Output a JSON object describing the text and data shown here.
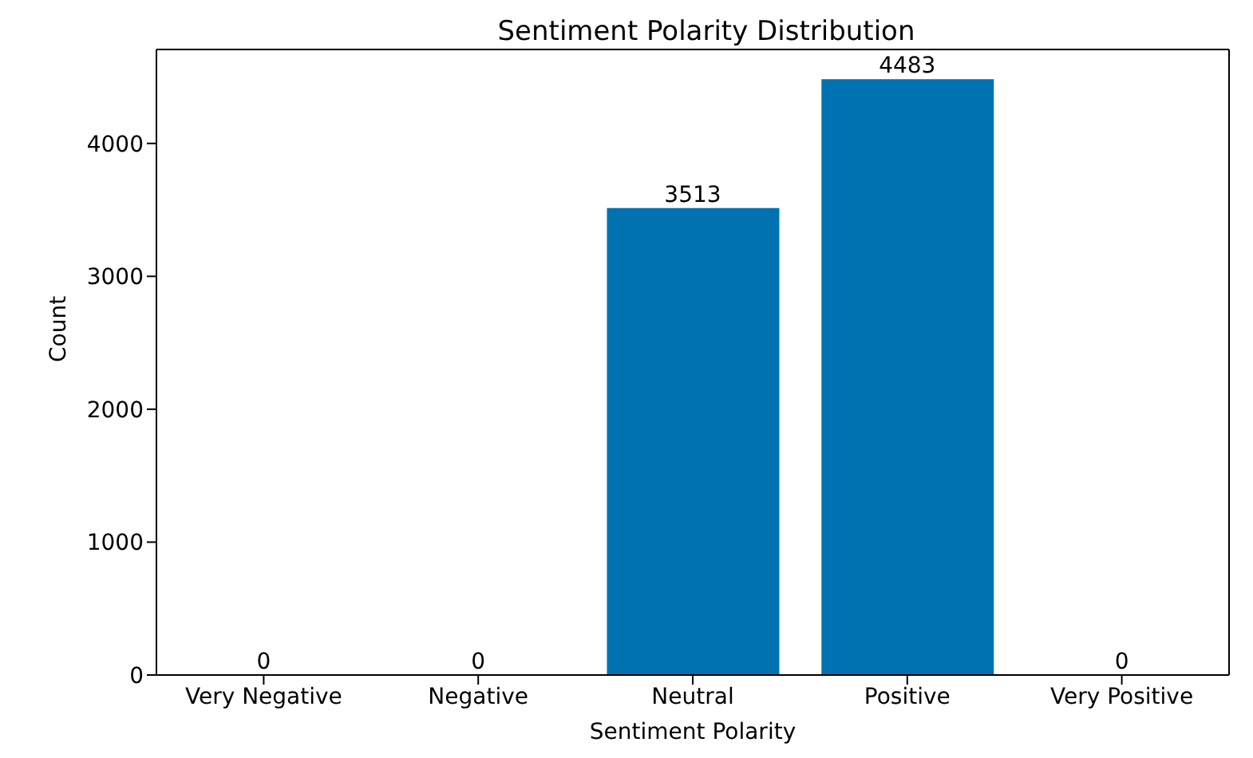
{
  "chart_data": {
    "type": "bar",
    "title": "Sentiment Polarity Distribution",
    "xlabel": "Sentiment Polarity",
    "ylabel": "Count",
    "categories": [
      "Very Negative",
      "Negative",
      "Neutral",
      "Positive",
      "Very Positive"
    ],
    "values": [
      0,
      0,
      3513,
      4483,
      0
    ],
    "color": "#0072b2",
    "ylim": [
      0,
      4707
    ],
    "yticks": [
      0,
      1000,
      2000,
      3000,
      4000
    ],
    "data_labels": true,
    "grid": false,
    "legend": false
  }
}
